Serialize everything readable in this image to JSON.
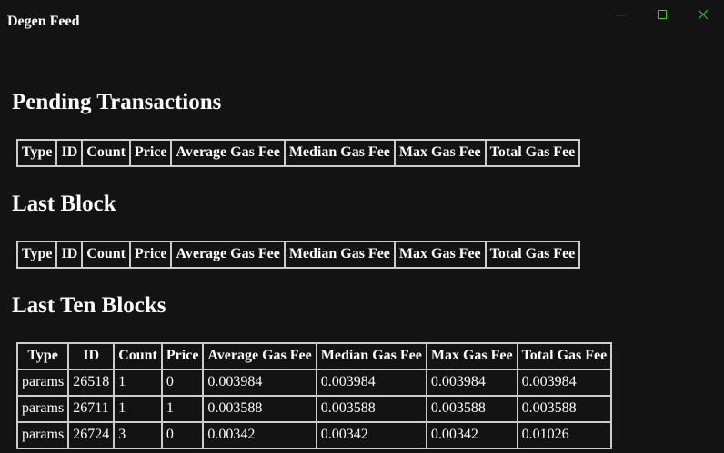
{
  "window": {
    "title": "Degen Feed",
    "accent_color": "#33cc33"
  },
  "sections": {
    "pending": {
      "heading": "Pending Transactions",
      "columns": [
        "Type",
        "ID",
        "Count",
        "Price",
        "Average Gas Fee",
        "Median Gas Fee",
        "Max Gas Fee",
        "Total Gas Fee"
      ],
      "rows": []
    },
    "last_block": {
      "heading": "Last Block",
      "columns": [
        "Type",
        "ID",
        "Count",
        "Price",
        "Average Gas Fee",
        "Median Gas Fee",
        "Max Gas Fee",
        "Total Gas Fee"
      ],
      "rows": []
    },
    "last_ten": {
      "heading": "Last Ten Blocks",
      "columns": [
        "Type",
        "ID",
        "Count",
        "Price",
        "Average Gas Fee",
        "Median Gas Fee",
        "Max Gas Fee",
        "Total Gas Fee"
      ],
      "rows": [
        [
          "params",
          "26518",
          "1",
          "0",
          "0.003984",
          "0.003984",
          "0.003984",
          "0.003984"
        ],
        [
          "params",
          "26711",
          "1",
          "1",
          "0.003588",
          "0.003588",
          "0.003588",
          "0.003588"
        ],
        [
          "params",
          "26724",
          "3",
          "0",
          "0.00342",
          "0.00342",
          "0.00342",
          "0.01026"
        ]
      ]
    }
  }
}
